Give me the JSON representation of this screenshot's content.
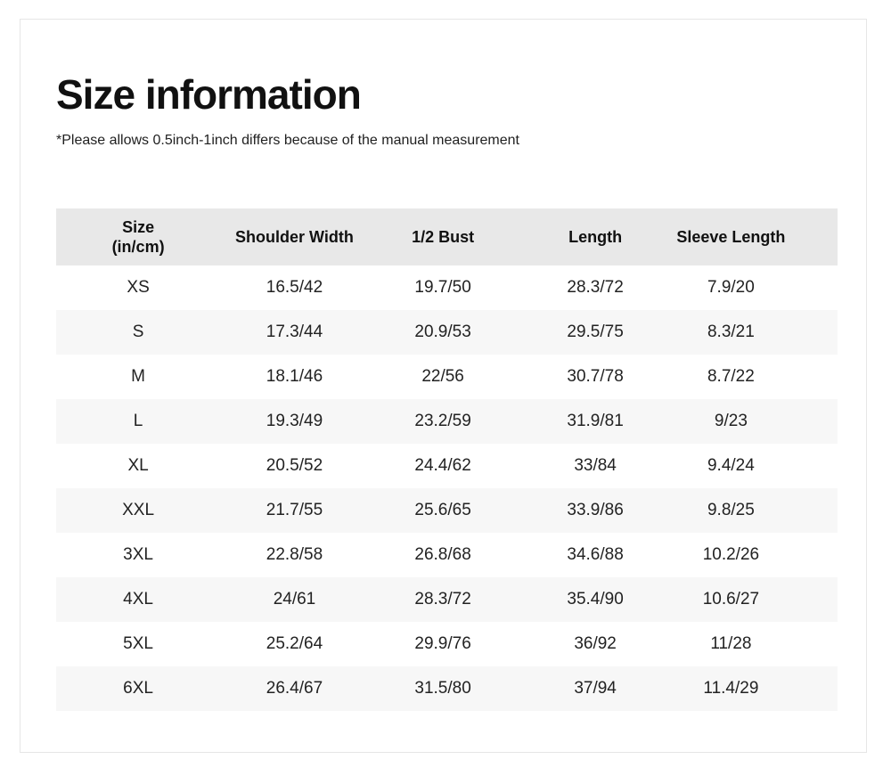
{
  "page": {
    "title": "Size information",
    "note": "*Please allows 0.5inch-1inch differs because of the manual measurement"
  },
  "size_table": {
    "header": {
      "size_line1": "Size",
      "size_line2": "(in/cm)",
      "shoulder_width": "Shoulder Width",
      "half_bust": "1/2 Bust",
      "length": "Length",
      "sleeve_length": "Sleeve Length"
    },
    "rows": [
      {
        "size": "XS",
        "shoulder_width": "16.5/42",
        "half_bust": "19.7/50",
        "length": "28.3/72",
        "sleeve_length": "7.9/20"
      },
      {
        "size": "S",
        "shoulder_width": "17.3/44",
        "half_bust": "20.9/53",
        "length": "29.5/75",
        "sleeve_length": "8.3/21"
      },
      {
        "size": "M",
        "shoulder_width": "18.1/46",
        "half_bust": "22/56",
        "length": "30.7/78",
        "sleeve_length": "8.7/22"
      },
      {
        "size": "L",
        "shoulder_width": "19.3/49",
        "half_bust": "23.2/59",
        "length": "31.9/81",
        "sleeve_length": "9/23"
      },
      {
        "size": "XL",
        "shoulder_width": "20.5/52",
        "half_bust": "24.4/62",
        "length": "33/84",
        "sleeve_length": "9.4/24"
      },
      {
        "size": "XXL",
        "shoulder_width": "21.7/55",
        "half_bust": "25.6/65",
        "length": "33.9/86",
        "sleeve_length": "9.8/25"
      },
      {
        "size": "3XL",
        "shoulder_width": "22.8/58",
        "half_bust": "26.8/68",
        "length": "34.6/88",
        "sleeve_length": "10.2/26"
      },
      {
        "size": "4XL",
        "shoulder_width": "24/61",
        "half_bust": "28.3/72",
        "length": "35.4/90",
        "sleeve_length": "10.6/27"
      },
      {
        "size": "5XL",
        "shoulder_width": "25.2/64",
        "half_bust": "29.9/76",
        "length": "36/92",
        "sleeve_length": "11/28"
      },
      {
        "size": "6XL",
        "shoulder_width": "26.4/67",
        "half_bust": "31.5/80",
        "length": "37/94",
        "sleeve_length": "11.4/29"
      }
    ]
  },
  "colors": {
    "header_bg": "#e8e8e8",
    "stripe_bg": "#f7f7f7",
    "card_border": "#e6e6e6",
    "text": "#1f1f1f"
  }
}
